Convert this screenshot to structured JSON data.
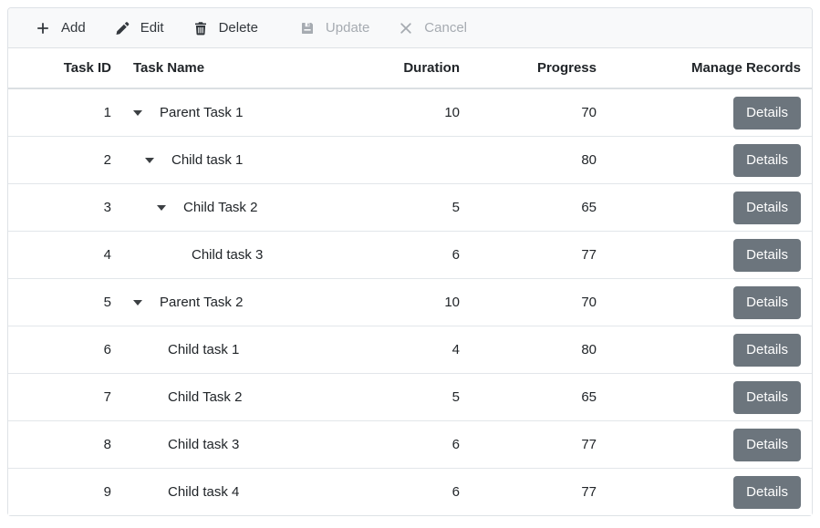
{
  "toolbar": {
    "items": [
      {
        "label": "Add",
        "icon": "plus-icon",
        "enabled": true
      },
      {
        "label": "Edit",
        "icon": "pencil-icon",
        "enabled": true
      },
      {
        "label": "Delete",
        "icon": "trash-icon",
        "enabled": true
      },
      {
        "label": "Update",
        "icon": "save-icon",
        "enabled": false
      },
      {
        "label": "Cancel",
        "icon": "cancel-icon",
        "enabled": false
      }
    ]
  },
  "table": {
    "columns": [
      {
        "label": "Task ID",
        "align": "right"
      },
      {
        "label": "Task Name",
        "align": "left"
      },
      {
        "label": "Duration",
        "align": "right"
      },
      {
        "label": "Progress",
        "align": "right"
      },
      {
        "label": "Manage Records",
        "align": "right"
      }
    ],
    "rows": [
      {
        "task_id": "1",
        "task_name": "Parent Task 1",
        "level": 0,
        "expandable": true,
        "duration": "10",
        "progress": "70",
        "action_label": "Details"
      },
      {
        "task_id": "2",
        "task_name": "Child task 1",
        "level": 1,
        "expandable": true,
        "duration": "",
        "progress": "80",
        "action_label": "Details"
      },
      {
        "task_id": "3",
        "task_name": "Child Task 2",
        "level": 2,
        "expandable": true,
        "duration": "5",
        "progress": "65",
        "action_label": "Details"
      },
      {
        "task_id": "4",
        "task_name": "Child task 3",
        "level": 3,
        "expandable": false,
        "duration": "6",
        "progress": "77",
        "action_label": "Details"
      },
      {
        "task_id": "5",
        "task_name": "Parent Task 2",
        "level": 0,
        "expandable": true,
        "duration": "10",
        "progress": "70",
        "action_label": "Details"
      },
      {
        "task_id": "6",
        "task_name": "Child task 1",
        "level": 1,
        "expandable": false,
        "duration": "4",
        "progress": "80",
        "action_label": "Details"
      },
      {
        "task_id": "7",
        "task_name": "Child Task 2",
        "level": 1,
        "expandable": false,
        "duration": "5",
        "progress": "65",
        "action_label": "Details"
      },
      {
        "task_id": "8",
        "task_name": "Child task 3",
        "level": 1,
        "expandable": false,
        "duration": "6",
        "progress": "77",
        "action_label": "Details"
      },
      {
        "task_id": "9",
        "task_name": "Child task 4",
        "level": 1,
        "expandable": false,
        "duration": "6",
        "progress": "77",
        "action_label": "Details"
      }
    ]
  },
  "colors": {
    "toolbar_bg": "#f8f9fa",
    "border": "#dee2e6",
    "text": "#212529",
    "toolbar_text": "#33383d",
    "disabled_text": "#a6abb1",
    "button_bg": "#6c757d",
    "button_text": "#ffffff"
  }
}
